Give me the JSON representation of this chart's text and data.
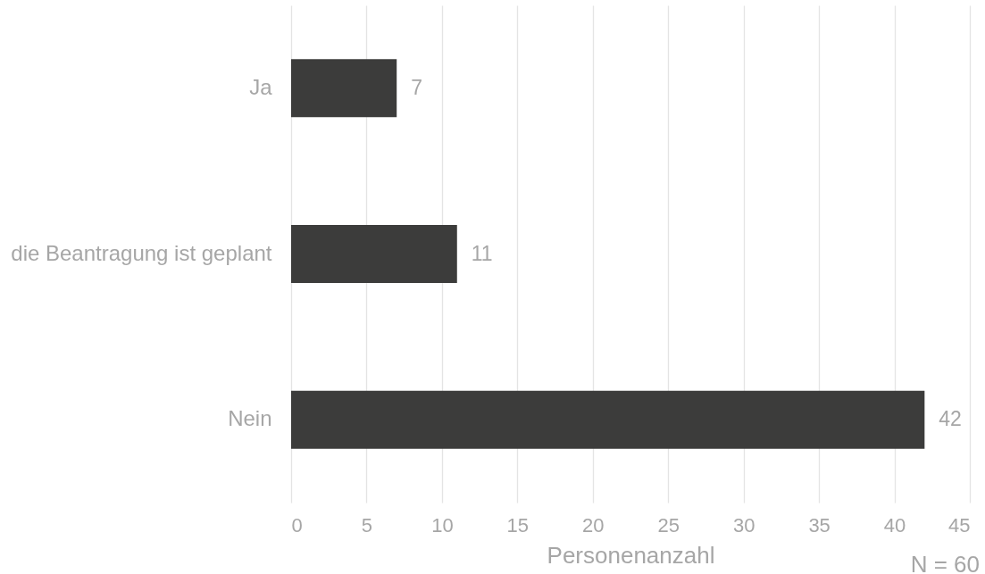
{
  "chart_data": {
    "type": "bar",
    "orientation": "horizontal",
    "categories": [
      "Ja",
      "die Beantragung ist geplant",
      "Nein"
    ],
    "values": [
      7,
      11,
      42
    ],
    "color": "#3c3c3b",
    "xlabel": "Personenanzahl",
    "xlim": [
      0,
      45
    ],
    "xticks": [
      0,
      5,
      10,
      15,
      20,
      25,
      30,
      35,
      40,
      45
    ],
    "grid": "x",
    "data_labels": true,
    "annotations": [
      "N = 60"
    ]
  }
}
